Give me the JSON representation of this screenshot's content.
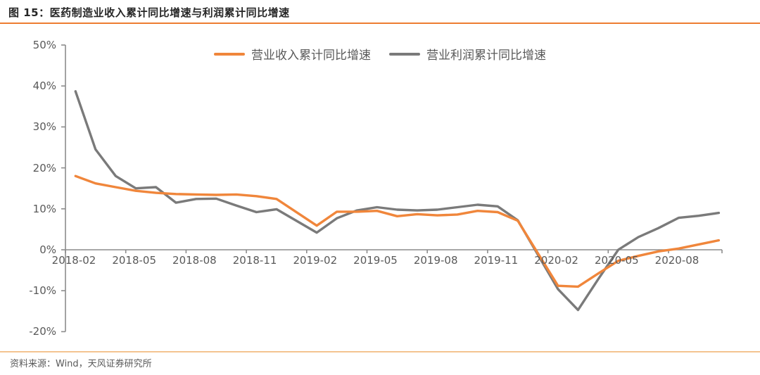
{
  "page": {
    "title": "图 15：医药制造业收入累计同比增速与利润累计同比增速",
    "source": "资料来源：Wind，天风证券研究所"
  },
  "theme": {
    "accent_orange": "#ED7D31",
    "rule_bottom_color": "#F4C490",
    "axis_color": "#8C8C8C",
    "label_color": "#595959"
  },
  "chart_data": {
    "type": "line",
    "title": "医药制造业收入累计同比增速与利润累计同比增速",
    "xlabel": "",
    "ylabel": "",
    "ylim": [
      -20,
      50
    ],
    "grid": false,
    "legend_position": "top-center",
    "y_ticks": [
      50,
      40,
      30,
      20,
      10,
      0,
      -10,
      -20
    ],
    "y_tick_labels": [
      "50%",
      "40%",
      "30%",
      "20%",
      "10%",
      "0%",
      "-10%",
      "-20%"
    ],
    "x_tick_labels": [
      "2018-02",
      "2018-05",
      "2018-08",
      "2018-11",
      "2019-02",
      "2019-05",
      "2019-08",
      "2019-11",
      "2020-02",
      "2020-05",
      "2020-08"
    ],
    "categories": [
      "2018-02",
      "2018-03",
      "2018-04",
      "2018-05",
      "2018-06",
      "2018-07",
      "2018-08",
      "2018-09",
      "2018-10",
      "2018-11",
      "2018-12",
      "2019-02",
      "2019-03",
      "2019-04",
      "2019-05",
      "2019-06",
      "2019-07",
      "2019-08",
      "2019-09",
      "2019-10",
      "2019-11",
      "2019-12",
      "2020-02",
      "2020-03",
      "2020-04",
      "2020-05",
      "2020-06",
      "2020-07",
      "2020-08",
      "2020-09",
      "2020-10"
    ],
    "series": [
      {
        "name": "营业收入累计同比增速",
        "color": "#F0863B",
        "values": [
          18.0,
          16.2,
          15.3,
          14.4,
          13.9,
          13.6,
          13.5,
          13.4,
          13.5,
          13.1,
          12.4,
          5.9,
          9.3,
          9.3,
          9.5,
          8.2,
          8.7,
          8.4,
          8.6,
          9.5,
          9.2,
          7.1,
          -8.8,
          -9.0,
          -5.8,
          -2.7,
          -1.5,
          -0.4,
          0.3,
          1.3,
          2.3
        ]
      },
      {
        "name": "营业利润累计同比增速",
        "color": "#7A7A7A",
        "values": [
          38.7,
          24.5,
          18.0,
          15.0,
          15.3,
          11.5,
          12.4,
          12.5,
          10.8,
          9.2,
          9.9,
          4.2,
          7.7,
          9.6,
          10.4,
          9.8,
          9.6,
          9.8,
          10.4,
          11.0,
          10.6,
          7.2,
          -9.6,
          -14.7,
          -7.2,
          0.0,
          3.1,
          5.3,
          7.8,
          8.3,
          9.0
        ]
      }
    ]
  }
}
